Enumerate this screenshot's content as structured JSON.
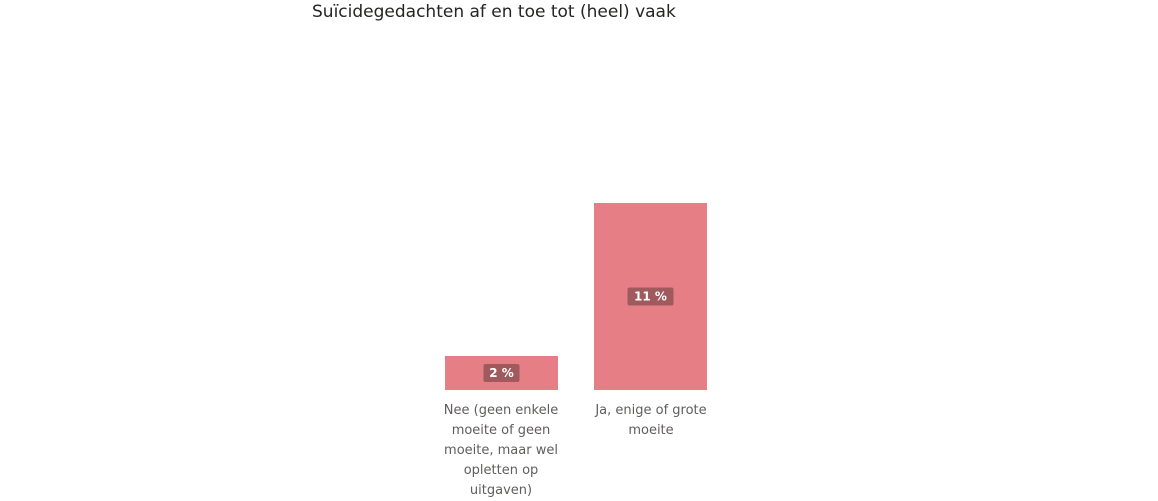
{
  "title": "Suïcidegedachten af en toe tot (heel) vaak",
  "colors": {
    "bar": "#e67f85",
    "data_label_bg": "#a05a5e",
    "data_label_text": "#ffffff",
    "title": "#252423",
    "category_text": "#605e5c"
  },
  "chart_data": {
    "type": "bar",
    "title": "Suïcidegedachten af en toe tot (heel) vaak",
    "categories": [
      "Nee (geen enkele moeite of geen moeite, maar wel opletten op uitgaven)",
      "Ja, enige of grote moeite"
    ],
    "values": [
      2,
      11
    ],
    "data_labels": [
      "2 %",
      "11 %"
    ],
    "xlabel": "",
    "ylabel": "",
    "ylim": [
      0,
      11
    ],
    "grid": false,
    "legend": "none"
  }
}
